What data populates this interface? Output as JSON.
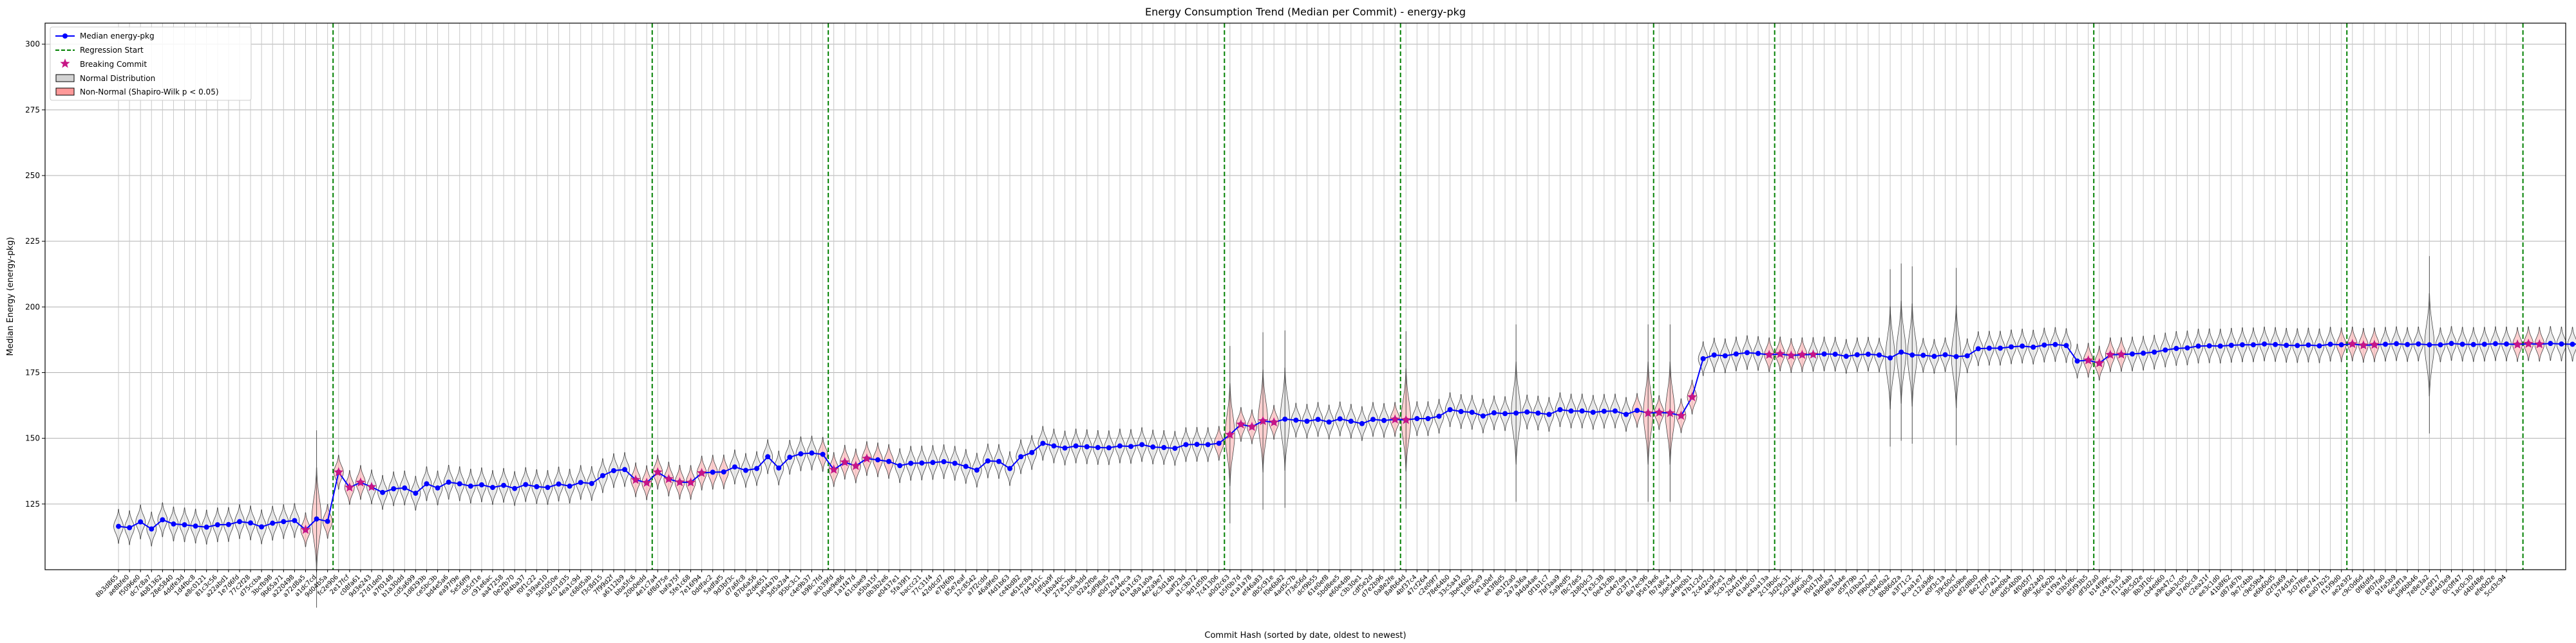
{
  "chart_data": {
    "type": "line",
    "title": "Energy Consumption Trend (Median per Commit) - energy-pkg",
    "xlabel": "Commit Hash (sorted by date, oldest to newest)",
    "ylabel": "Median Energy (energy-pkg)",
    "ylim": [
      100,
      308
    ],
    "yticks": [
      125,
      150,
      175,
      200,
      225,
      250,
      275,
      300
    ],
    "grid": true,
    "legend": {
      "placement": "upper-left",
      "entries": [
        {
          "key": "median",
          "label": "Median energy-pkg",
          "color": "#0000ff"
        },
        {
          "key": "regression",
          "label": "Regression Start",
          "color": "#008000"
        },
        {
          "key": "breaking",
          "label": "Breaking Commit",
          "color": "#c71585"
        },
        {
          "key": "normal",
          "label": "Normal Distribution",
          "color": "#d3d3d3"
        },
        {
          "key": "nonnormal",
          "label": "Non-Normal (Shapiro-Wilk p < 0.05)",
          "color": "#ff9999"
        }
      ]
    },
    "commits": [
      "8b3d865",
      "ae8bfe0",
      "f5096e0",
      "dc7c8a7",
      "4b81362",
      "28e5840",
      "4ddfe3d",
      "1d4fbc8",
      "e8c0121",
      "81c3c56",
      "a22abd1",
      "1e7d6fd",
      "77c2f28",
      "d75ccba",
      "3bcfb98",
      "9b65a71",
      "a220498",
      "a72d8a5",
      "a1dc7cd",
      "9d04b5a",
      "fc2e906",
      "2e17fcf",
      "c08fa61",
      "9d3e243",
      "27d1de0",
      "a7f0148",
      "b1a30dd",
      "cd5a699",
      "1d8293b",
      "ce5bc3b",
      "bd4e5a6",
      "ea97f9e",
      "5e56ff9",
      "cb5cf1e",
      "c91e6ac",
      "aa47258",
      "0e2fb70",
      "8f4ba37",
      "f0f1c22",
      "a39ae10",
      "5b5050e",
      "4c01d35",
      "4ea1c9d",
      "c68d5ab",
      "f3c8d15",
      "7f99d2f",
      "a6112b9",
      "bba5fc6",
      "20b0edd",
      "4e1c7a4",
      "6f8d75e",
      "bafa75f",
      "5fe1c68",
      "7e16f94",
      "0ddfac2",
      "5adfaf5",
      "9d3bf3c",
      "d7a6fc8",
      "87b6a56",
      "a2de651",
      "1a04a7b",
      "3d5a2a4",
      "95bc3c1",
      "c4e9b37",
      "b98c7fd",
      "acb39fd",
      "0ae9e86",
      "1a1f47d",
      "61cbae9",
      "a5ba15f",
      "0b3b2e6",
      "e0437e1",
      "5fa39f1",
      "baccc21",
      "77c31f4",
      "42ddcd7",
      "e7bf6fb",
      "85e7eaf",
      "12c8542",
      "a7f2cdd",
      "46a9fe0",
      "f4d1b63",
      "ce4bd82",
      "e61ec8a",
      "7d43d1c",
      "fdfda9f",
      "16ba40c",
      "27a52b6",
      "1c0a3dd",
      "02a2f0e",
      "5df98a5",
      "e0d7e79",
      "2b44eca",
      "61a1c63",
      "b8a1a0a",
      "4e2a9e7",
      "6c3d14b",
      "baff23d",
      "a1c3b72",
      "9d1d5fb",
      "7c41306",
      "a0d2c63",
      "b5f0b7d",
      "e1a1a78",
      "ef46a83",
      "db5c91e",
      "f0e6b82",
      "4ad5c7b",
      "f73e56d",
      "dcf9b55",
      "61e0ef8",
      "5bd8ee5",
      "e60e4db",
      "c3b30e1",
      "cdf5e2d",
      "d7e2b96",
      "0a8e2fe",
      "8afb64d",
      "4bf37c4",
      "47cf264",
      "c2e09f7",
      "78e64b0",
      "33c5a43",
      "3be46b2",
      "1c8b5e9",
      "fe1a0ef",
      "e43f8d5",
      "eb1f2a0",
      "2a7a36a",
      "94da4ae",
      "0f1b1c7",
      "7bf3aa9",
      "5a9edf5",
      "f8c7de5",
      "2b80dc3",
      "17e3c38",
      "0e43c8b",
      "cb4e7da",
      "d23f71a",
      "8a7ec96",
      "95e19e6",
      "fb7a8c4",
      "3de54cd",
      "a49e0b1",
      "47b1c2d",
      "2c4d2cd",
      "4e9f5e1",
      "5cb7c9d",
      "2b4d1f6",
      "61adc07",
      "e4aa13a",
      "2c19bdc",
      "3d29c31",
      "5d2b6dc",
      "a46a0c8",
      "f0d17bf",
      "49db8a7",
      "8fa3b4e",
      "d5ff79b",
      "7d3ba27",
      "f9b0eb7",
      "c34e0a2",
      "8b86d2a",
      "a3f71c2",
      "bcaa1e7",
      "c12a9d6",
      "e0f3c1a",
      "39c60cf",
      "0d2b9be",
      "ef2d8b0",
      "8e27f9f",
      "bcf7a21",
      "c6ee0b4",
      "dd54b0b",
      "4f0d5f7",
      "d8e2a40",
      "36c6e2b",
      "a1f9a7d",
      "03b5f6c",
      "85f93b5",
      "df3d2a0",
      "b14f99c",
      "c43e3a5",
      "f11c4ab",
      "98c5d2e",
      "8b3f10c",
      "cb4ed60",
      "a9e47c7",
      "6ab3c05",
      "b7e0cc8",
      "c2ea21f",
      "ee3c1d0",
      "41b8f62",
      "d87a67b",
      "9e7c4bb",
      "c9e59b4",
      "e6b60d5",
      "d2f3a69",
      "b74d3e1",
      "3c07f6e",
      "ff2e741",
      "ea07b25",
      "f15f9d0",
      "ae2e3f2",
      "c9c0d6d",
      "0f6fdfd",
      "8f07fa0",
      "91fa5b9",
      "6e2ff1a",
      "b96bb46",
      "7e8e3a2",
      "c1e0f17",
      "bf4d3e9",
      "0c0ff47",
      "1ac0c30",
      "d4bf48e",
      "efe0d2e",
      "5cd3c94"
    ],
    "x": [
      0,
      1,
      2,
      3,
      4,
      5,
      6,
      7,
      8,
      9,
      10,
      11,
      12,
      13,
      14,
      15,
      16,
      17,
      18,
      19,
      20,
      21,
      22,
      23,
      24,
      25,
      26,
      27,
      28,
      29,
      30,
      31,
      32,
      33,
      34,
      35,
      36,
      37,
      38,
      39,
      40,
      41,
      42,
      43,
      44,
      45,
      46,
      47,
      48,
      49,
      50,
      51,
      52,
      53,
      54,
      55,
      56,
      57,
      58,
      59,
      60,
      61,
      62,
      63,
      64,
      65,
      66,
      67,
      68,
      69,
      70,
      71,
      72,
      73,
      74,
      75,
      76,
      77,
      78,
      79,
      80,
      81,
      82,
      83,
      84,
      85,
      86,
      87,
      88,
      89,
      90,
      91,
      92,
      93,
      94,
      95,
      96,
      97,
      98,
      99,
      100,
      101,
      102,
      103,
      104,
      105,
      106,
      107,
      108,
      109,
      110,
      111,
      112,
      113,
      114,
      115,
      116,
      117,
      118,
      119,
      120,
      121,
      122,
      123,
      124,
      125,
      126,
      127,
      128,
      129,
      130,
      131,
      132,
      133,
      134,
      135,
      136,
      137,
      138,
      139,
      140,
      141,
      142,
      143,
      144,
      145,
      146,
      147,
      148,
      149,
      150,
      151,
      152,
      153,
      154,
      155,
      156,
      157,
      158,
      159,
      160,
      161,
      162,
      163,
      164,
      165,
      166,
      167,
      168,
      169,
      170,
      171,
      172,
      173,
      174,
      175,
      176,
      177,
      178,
      179,
      180,
      181,
      182,
      183,
      184,
      185,
      186,
      187,
      188,
      189,
      190,
      191,
      192,
      193,
      194,
      195,
      196,
      197,
      198,
      199,
      200,
      201,
      202,
      203,
      204,
      205,
      206,
      207,
      208,
      209,
      210,
      211,
      212,
      213,
      214,
      215,
      216,
      217,
      218,
      219,
      220,
      221,
      222,
      223,
      224
    ],
    "series": [
      {
        "name": "Median energy-pkg",
        "values": [
          116.5,
          116,
          118.2,
          115.5,
          119,
          117.4,
          117.1,
          116.6,
          116.2,
          117.1,
          117.2,
          118.3,
          117.8,
          116.3,
          117.7,
          118.3,
          118.7,
          115.2,
          119.3,
          118.4,
          137.1,
          131.3,
          133.2,
          131.5,
          129.4,
          130.8,
          131.1,
          129.1,
          132.7,
          131.1,
          133.3,
          132.7,
          131.8,
          132.3,
          131.3,
          132.1,
          130.9,
          132.4,
          131.6,
          131.3,
          132.6,
          131.8,
          133.2,
          132.8,
          135.8,
          137.7,
          138.1,
          134.2,
          133.1,
          137.1,
          134.5,
          133.3,
          133.2,
          136.8,
          137.1,
          137.2,
          139.1,
          137.8,
          138.5,
          143,
          138.7,
          142.8,
          144.1,
          144.4,
          143.9,
          138.1,
          140.9,
          139.5,
          142.3,
          141.8,
          141.2,
          139.6,
          140.5,
          140.6,
          140.8,
          141.1,
          140.5,
          139.3,
          137.9,
          141.4,
          141.2,
          138.5,
          143,
          144.6,
          148.1,
          147.1,
          146.3,
          147.1,
          146.8,
          146.5,
          146.4,
          147.1,
          146.9,
          147.6,
          146.7,
          146.5,
          146.2,
          147.6,
          147.7,
          147.6,
          148.1,
          151.4,
          155.3,
          154.4,
          156.6,
          156.1,
          157.3,
          156.9,
          156.5,
          157.2,
          156.2,
          157.4,
          156.5,
          155.6,
          157.2,
          156.8,
          157.2,
          157,
          157.5,
          157.5,
          158.4,
          160.9,
          160.2,
          159.9,
          158.5,
          159.7,
          159.4,
          159.6,
          160,
          159.6,
          159.1,
          160.9,
          160.4,
          160.4,
          159.9,
          160.3,
          160.4,
          159.1,
          160.6,
          159.6,
          159.8,
          159.6,
          158.6,
          165.7,
          180.3,
          181.7,
          181.4,
          182.1,
          182.6,
          182.3,
          181.8,
          182.1,
          181.5,
          181.8,
          181.9,
          182.1,
          182,
          181.2,
          181.8,
          182,
          181.7,
          180.6,
          182.8,
          181.7,
          181.6,
          181.2,
          181.8,
          181.1,
          181.4,
          184.1,
          184.3,
          184.3,
          184.8,
          185.1,
          184.7,
          185.5,
          185.7,
          185.3,
          179.4,
          179.7,
          178.6,
          181.8,
          181.9,
          182.1,
          182.4,
          182.8,
          183.6,
          184.2,
          184.4,
          185.1,
          185.2,
          185.1,
          185.4,
          185.6,
          185.6,
          185.9,
          185.7,
          185.4,
          185.3,
          185.5,
          185.2,
          185.8,
          185.6,
          185.9,
          185.4,
          185.6,
          185.8,
          186,
          185.7,
          185.9,
          185.6,
          185.6,
          186.1,
          185.8,
          185.7,
          185.8,
          186,
          185.9,
          185.7,
          186,
          185.8,
          186.1,
          185.9,
          185.8,
          186
        ]
      }
    ],
    "regression_start_indices": [
      20,
      49,
      65,
      101,
      117,
      140,
      151,
      180,
      203,
      219
    ],
    "breaking_commit_indices": [
      17,
      20,
      21,
      22,
      23,
      47,
      48,
      49,
      50,
      51,
      52,
      53,
      65,
      66,
      67,
      68,
      101,
      102,
      103,
      104,
      105,
      116,
      117,
      139,
      140,
      141,
      142,
      143,
      150,
      151,
      152,
      153,
      154,
      179,
      180,
      181,
      182,
      203,
      204,
      205,
      218,
      219,
      220
    ],
    "non_normal_indices": [
      17,
      18,
      19,
      20,
      21,
      22,
      47,
      48,
      49,
      50,
      51,
      52,
      53,
      54,
      55,
      64,
      65,
      66,
      67,
      68,
      69,
      70,
      100,
      101,
      102,
      103,
      104,
      105,
      116,
      117,
      138,
      139,
      140,
      141,
      142,
      143,
      150,
      151,
      152,
      153,
      179,
      180,
      181,
      182,
      202,
      203,
      204,
      205,
      218,
      219,
      220
    ],
    "wide_spread_indices": [
      18,
      101,
      104,
      106,
      117,
      127,
      139,
      141,
      161,
      162,
      163,
      167,
      210
    ],
    "spread": 2.5
  }
}
